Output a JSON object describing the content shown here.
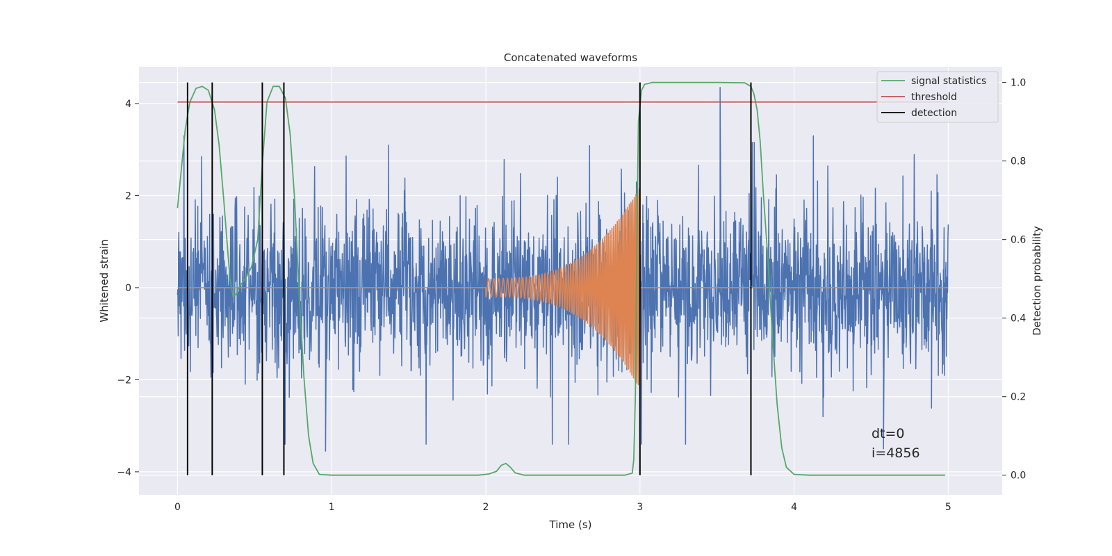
{
  "chart_data": {
    "type": "line",
    "title": "Concatenated waveforms",
    "xlabel": "Time (s)",
    "ylabel": "Whitened strain",
    "y2label": "Detection probability",
    "xlim": [
      -0.25,
      5.35
    ],
    "ylim": [
      -4.5,
      4.8
    ],
    "y2lim": [
      -0.05,
      1.04
    ],
    "x_ticks": [
      0,
      1,
      2,
      3,
      4,
      5
    ],
    "y_ticks": [
      -4,
      -2,
      0,
      2,
      4
    ],
    "y2_ticks": [
      0.0,
      0.2,
      0.4,
      0.6,
      0.8,
      1.0
    ],
    "x_tick_labels": [
      "0",
      "1",
      "2",
      "3",
      "4",
      "5"
    ],
    "y_tick_labels": [
      "−4",
      "−2",
      "0",
      "2",
      "4"
    ],
    "y2_tick_labels": [
      "0.0",
      "0.2",
      "0.4",
      "0.6",
      "0.8",
      "1.0"
    ],
    "grid": true,
    "legend_position": "top-right",
    "series": [
      {
        "name": "",
        "kind": "noise",
        "axis": "left",
        "color": "#4c72b0",
        "x_range": [
          0,
          5
        ],
        "approx_std": 0.85,
        "note_peaks": [
          {
            "x": 3.52,
            "y": 4.35
          },
          {
            "x": 0.96,
            "y": -3.55
          },
          {
            "x": 4.58,
            "y": -3.5
          }
        ]
      },
      {
        "name": "",
        "kind": "chirp",
        "axis": "left",
        "color": "#dd8452",
        "x_range": [
          0,
          5
        ],
        "chirp_start": 2.0,
        "chirp_end": 3.0,
        "amplitude_start": 0.2,
        "amplitude_end": 2.2,
        "cycles": 62
      },
      {
        "name": "signal statistics",
        "axis": "right",
        "color": "#55a868",
        "points": [
          [
            0.0,
            0.68
          ],
          [
            0.02,
            0.76
          ],
          [
            0.05,
            0.88
          ],
          [
            0.08,
            0.95
          ],
          [
            0.12,
            0.985
          ],
          [
            0.16,
            0.99
          ],
          [
            0.2,
            0.98
          ],
          [
            0.24,
            0.93
          ],
          [
            0.27,
            0.84
          ],
          [
            0.3,
            0.7
          ],
          [
            0.32,
            0.6
          ],
          [
            0.34,
            0.5
          ],
          [
            0.36,
            0.455
          ],
          [
            0.38,
            0.46
          ],
          [
            0.4,
            0.48
          ],
          [
            0.44,
            0.5
          ],
          [
            0.48,
            0.53
          ],
          [
            0.52,
            0.6
          ],
          [
            0.55,
            0.79
          ],
          [
            0.58,
            0.95
          ],
          [
            0.62,
            0.99
          ],
          [
            0.66,
            0.99
          ],
          [
            0.7,
            0.96
          ],
          [
            0.73,
            0.87
          ],
          [
            0.76,
            0.7
          ],
          [
            0.79,
            0.45
          ],
          [
            0.82,
            0.25
          ],
          [
            0.85,
            0.1
          ],
          [
            0.88,
            0.03
          ],
          [
            0.92,
            0.002
          ],
          [
            1.0,
            0.0
          ],
          [
            1.5,
            0.0
          ],
          [
            1.95,
            0.0
          ],
          [
            2.02,
            0.003
          ],
          [
            2.07,
            0.01
          ],
          [
            2.1,
            0.025
          ],
          [
            2.13,
            0.03
          ],
          [
            2.16,
            0.02
          ],
          [
            2.19,
            0.006
          ],
          [
            2.25,
            0.0
          ],
          [
            2.5,
            0.0
          ],
          [
            2.9,
            0.0
          ],
          [
            2.95,
            0.005
          ],
          [
            2.96,
            0.04
          ],
          [
            2.97,
            0.2
          ],
          [
            2.98,
            0.6
          ],
          [
            2.99,
            0.9
          ],
          [
            3.01,
            0.98
          ],
          [
            3.03,
            0.995
          ],
          [
            3.08,
            1.0
          ],
          [
            3.5,
            1.0
          ],
          [
            3.68,
            0.999
          ],
          [
            3.72,
            0.99
          ],
          [
            3.74,
            0.97
          ],
          [
            3.76,
            0.93
          ],
          [
            3.78,
            0.85
          ],
          [
            3.8,
            0.72
          ],
          [
            3.83,
            0.55
          ],
          [
            3.86,
            0.35
          ],
          [
            3.89,
            0.18
          ],
          [
            3.92,
            0.07
          ],
          [
            3.95,
            0.02
          ],
          [
            4.0,
            0.002
          ],
          [
            4.1,
            0.0
          ],
          [
            4.98,
            0.0
          ]
        ]
      },
      {
        "name": "threshold",
        "axis": "right",
        "color": "#c44e52",
        "value": 0.95,
        "x_range": [
          0,
          5
        ]
      },
      {
        "name": "detection",
        "axis": "right",
        "color": "#000000",
        "x_positions": [
          0.065,
          0.225,
          0.55,
          0.69,
          3.0,
          3.72
        ],
        "y_range": [
          0.0,
          1.0
        ]
      }
    ],
    "annotations": [
      "dt=0",
      "i=4856"
    ]
  }
}
